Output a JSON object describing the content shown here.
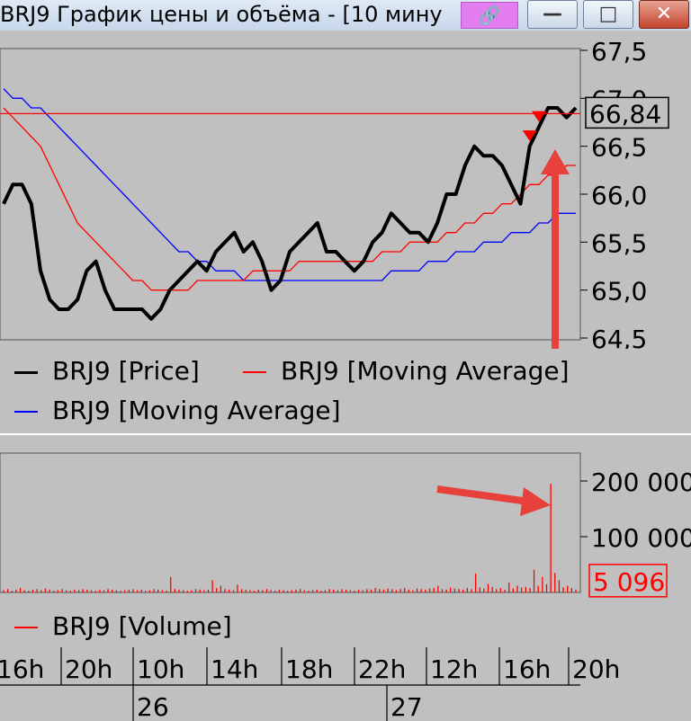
{
  "window": {
    "title": "BRJ9 График цены и объёма - [10 мину",
    "link_icon": "link-icon",
    "minimize_icon": "minimize-icon",
    "maximize_icon": "maximize-icon",
    "close_icon": "close-icon"
  },
  "colors": {
    "price": "#000000",
    "ma_red": "#ff0000",
    "ma_blue": "#0000ff",
    "volume": "#ff0000",
    "background": "#c0c0c0"
  },
  "legend": {
    "price": "BRJ9 [Price]",
    "ma_red": "BRJ9 [Moving Average]",
    "ma_blue": "BRJ9 [Moving Average]",
    "volume": "BRJ9 [Volume]"
  },
  "chart_data": [
    {
      "type": "line",
      "ylim": [
        64.5,
        67.5
      ],
      "y_ticks": [
        "67,5",
        "67,0",
        "66,5",
        "66,0",
        "65,5",
        "65,0",
        "64,5"
      ],
      "y_tick_values": [
        67.5,
        67.0,
        66.5,
        66.0,
        65.5,
        65.0,
        64.5
      ],
      "current_price_label": "66,84",
      "current_price": 66.84,
      "horizontal_line": 66.84,
      "grid": false,
      "legend_position": "bottom",
      "series": [
        {
          "name": "BRJ9 [Price]",
          "color": "#000000",
          "values": [
            65.9,
            66.1,
            66.1,
            65.9,
            65.2,
            64.9,
            64.8,
            64.8,
            64.9,
            65.2,
            65.3,
            65.0,
            64.8,
            64.8,
            64.8,
            64.8,
            64.7,
            64.8,
            65.0,
            65.1,
            65.2,
            65.3,
            65.2,
            65.4,
            65.5,
            65.6,
            65.4,
            65.5,
            65.3,
            65.0,
            65.1,
            65.4,
            65.5,
            65.6,
            65.7,
            65.4,
            65.4,
            65.3,
            65.2,
            65.3,
            65.5,
            65.6,
            65.8,
            65.7,
            65.6,
            65.6,
            65.5,
            65.7,
            66.0,
            66.0,
            66.3,
            66.5,
            66.4,
            66.4,
            66.3,
            66.1,
            65.9,
            66.5,
            66.7,
            66.9,
            66.9,
            66.8,
            66.9
          ]
        },
        {
          "name": "BRJ9 [Moving Average]",
          "color": "#ff0000",
          "values": [
            66.9,
            66.8,
            66.7,
            66.6,
            66.5,
            66.3,
            66.1,
            65.9,
            65.7,
            65.6,
            65.5,
            65.4,
            65.3,
            65.2,
            65.1,
            65.1,
            65.0,
            65.0,
            65.0,
            65.0,
            65.0,
            65.1,
            65.1,
            65.1,
            65.1,
            65.1,
            65.1,
            65.2,
            65.2,
            65.2,
            65.2,
            65.2,
            65.3,
            65.3,
            65.3,
            65.3,
            65.3,
            65.3,
            65.3,
            65.3,
            65.3,
            65.4,
            65.4,
            65.4,
            65.5,
            65.5,
            65.5,
            65.5,
            65.6,
            65.6,
            65.7,
            65.7,
            65.8,
            65.8,
            65.9,
            65.9,
            66.0,
            66.1,
            66.1,
            66.2,
            66.2,
            66.3,
            66.3
          ]
        },
        {
          "name": "BRJ9 [Moving Average]",
          "color": "#0000ff",
          "values": [
            67.1,
            67.0,
            67.0,
            66.9,
            66.9,
            66.8,
            66.7,
            66.6,
            66.5,
            66.4,
            66.3,
            66.2,
            66.1,
            66.0,
            65.9,
            65.8,
            65.7,
            65.6,
            65.5,
            65.4,
            65.4,
            65.3,
            65.3,
            65.2,
            65.2,
            65.2,
            65.1,
            65.1,
            65.1,
            65.1,
            65.1,
            65.1,
            65.1,
            65.1,
            65.1,
            65.1,
            65.1,
            65.1,
            65.1,
            65.1,
            65.1,
            65.1,
            65.2,
            65.2,
            65.2,
            65.2,
            65.3,
            65.3,
            65.3,
            65.4,
            65.4,
            65.4,
            65.5,
            65.5,
            65.5,
            65.6,
            65.6,
            65.6,
            65.7,
            65.7,
            65.8,
            65.8,
            65.8
          ]
        }
      ],
      "markers": [
        {
          "index": 57,
          "value": 66.6
        },
        {
          "index": 58,
          "value": 66.8
        }
      ]
    },
    {
      "type": "bar",
      "name": "BRJ9 [Volume]",
      "ylim": [
        0,
        250000
      ],
      "y_ticks": [
        "200 000",
        "100 000"
      ],
      "y_tick_values": [
        200000,
        100000
      ],
      "current_volume_label": "5 096",
      "current_volume": 5096,
      "values": [
        4000,
        6000,
        3000,
        5000,
        8000,
        4000,
        3000,
        5000,
        6000,
        4000,
        7000,
        5000,
        3000,
        4000,
        6000,
        4000,
        3000,
        5000,
        4000,
        6000,
        5000,
        4000,
        3000,
        5000,
        4000,
        6000,
        5000,
        4000,
        3000,
        4000,
        5000,
        6000,
        4000,
        5000,
        3000,
        4000,
        6000,
        5000,
        4000,
        3000,
        28000,
        6000,
        5000,
        4000,
        3000,
        4000,
        6000,
        5000,
        4000,
        5000,
        22000,
        8000,
        12000,
        6000,
        5000,
        4000,
        14000,
        6000,
        5000,
        4000,
        3000,
        5000,
        4000,
        6000,
        4000,
        3000,
        5000,
        4000,
        3000,
        4000,
        5000,
        6000,
        4000,
        3000,
        4000,
        5000,
        3000,
        4000,
        6000,
        5000,
        4000,
        6000,
        5000,
        4000,
        3000,
        5000,
        4000,
        6000,
        5000,
        8000,
        6000,
        5000,
        7000,
        6000,
        4000,
        6000,
        8000,
        5000,
        4000,
        7000,
        6000,
        5000,
        7000,
        8000,
        12000,
        6000,
        5000,
        9000,
        7000,
        6000,
        5000,
        8000,
        6000,
        34000,
        9000,
        7000,
        15000,
        10000,
        6000,
        8000,
        5000,
        18000,
        7000,
        12000,
        9000,
        10000,
        8000,
        41000,
        12000,
        28000,
        15000,
        195000,
        35000,
        22000,
        9000,
        12000,
        8000,
        5096
      ]
    }
  ],
  "x_axis": {
    "hours": [
      "16h",
      "20h",
      "10h",
      "14h",
      "18h",
      "22h",
      "12h",
      "16h",
      "20h"
    ],
    "days": [
      "26",
      "27"
    ]
  }
}
